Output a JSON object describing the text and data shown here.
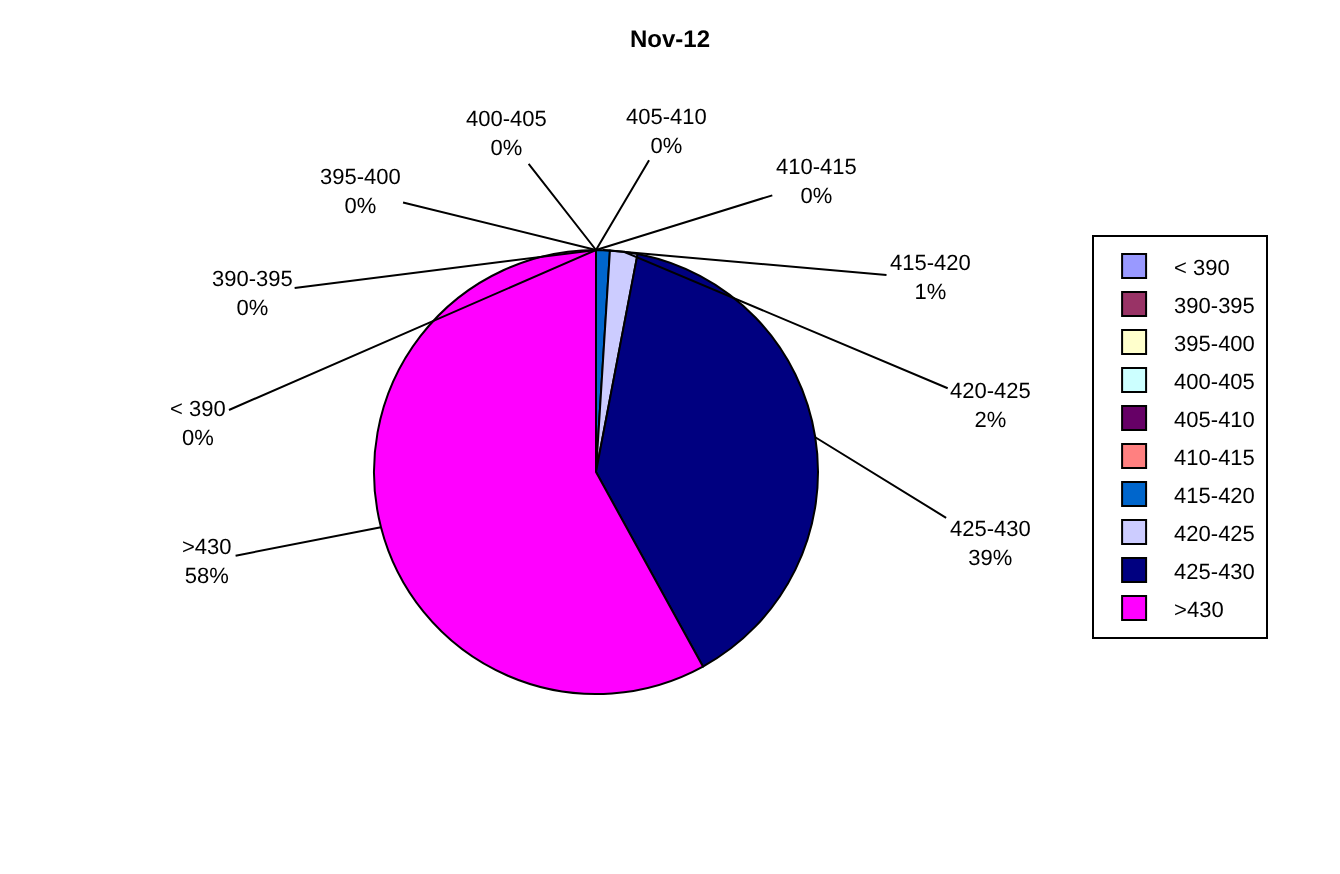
{
  "chart_data": {
    "type": "pie",
    "title": "Nov-12",
    "categories": [
      "< 390",
      "390-395",
      "395-400",
      "400-405",
      "405-410",
      "410-415",
      "415-420",
      "420-425",
      "425-430",
      ">430"
    ],
    "values": [
      0,
      0,
      0,
      0,
      0,
      0,
      1,
      2,
      39,
      58
    ],
    "value_labels": [
      "0%",
      "0%",
      "0%",
      "0%",
      "0%",
      "0%",
      "1%",
      "2%",
      "39%",
      "58%"
    ],
    "colors": [
      "#9999ff",
      "#993366",
      "#ffffcc",
      "#ccffff",
      "#660066",
      "#ff8080",
      "#0066cc",
      "#ccccff",
      "#000080",
      "#ff00ff"
    ],
    "legend": "right"
  }
}
